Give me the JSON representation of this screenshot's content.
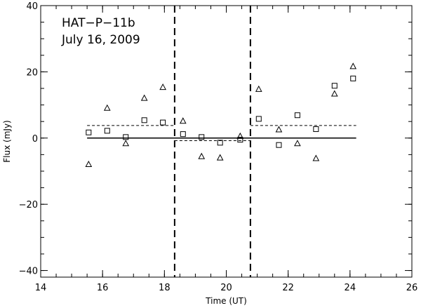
{
  "chart_data": {
    "type": "scatter",
    "annotations": [
      "HAT−P−11b",
      "July 16, 2009"
    ],
    "xlabel": "Time (UT)",
    "ylabel": "Flux (mJy)",
    "xlim": [
      14,
      26
    ],
    "ylim": [
      -42,
      40
    ],
    "x_ticks": [
      14,
      16,
      18,
      20,
      22,
      24,
      26
    ],
    "y_ticks": [
      -40,
      -20,
      0,
      20,
      40
    ],
    "x_minor_step": 0.5,
    "y_minor_step": 5,
    "grid": false,
    "series": [
      {
        "marker": "square",
        "points": [
          [
            15.55,
            1.7
          ],
          [
            16.15,
            2.2
          ],
          [
            16.75,
            0.3
          ],
          [
            17.35,
            5.4
          ],
          [
            17.95,
            4.7
          ],
          [
            18.6,
            1.2
          ],
          [
            19.2,
            0.3
          ],
          [
            19.8,
            -1.4
          ],
          [
            20.45,
            -0.5
          ],
          [
            21.05,
            5.8
          ],
          [
            21.7,
            -2.1
          ],
          [
            22.3,
            6.9
          ],
          [
            22.9,
            2.7
          ],
          [
            23.5,
            15.8
          ],
          [
            24.1,
            18.0
          ]
        ]
      },
      {
        "marker": "triangle",
        "points": [
          [
            15.55,
            -8.0
          ],
          [
            16.15,
            9.0
          ],
          [
            16.75,
            -1.7
          ],
          [
            17.35,
            12.0
          ],
          [
            17.95,
            15.3
          ],
          [
            18.6,
            5.1
          ],
          [
            19.2,
            -5.6
          ],
          [
            19.8,
            -6.0
          ],
          [
            20.45,
            0.5
          ],
          [
            21.05,
            14.7
          ],
          [
            21.7,
            2.5
          ],
          [
            22.3,
            -1.7
          ],
          [
            22.9,
            -6.2
          ],
          [
            23.5,
            13.3
          ],
          [
            24.1,
            21.6
          ]
        ]
      }
    ],
    "reference_lines": {
      "zero_line": {
        "y": 0,
        "x_range": [
          15.5,
          24.2
        ]
      },
      "vertical_dashed": [
        18.33,
        20.78
      ],
      "mean_segments": [
        {
          "x_range": [
            15.5,
            18.33
          ],
          "y": 3.8
        },
        {
          "x_range": [
            18.33,
            20.78
          ],
          "y": -0.8
        },
        {
          "x_range": [
            20.78,
            24.2
          ],
          "y": 3.8
        }
      ]
    }
  }
}
